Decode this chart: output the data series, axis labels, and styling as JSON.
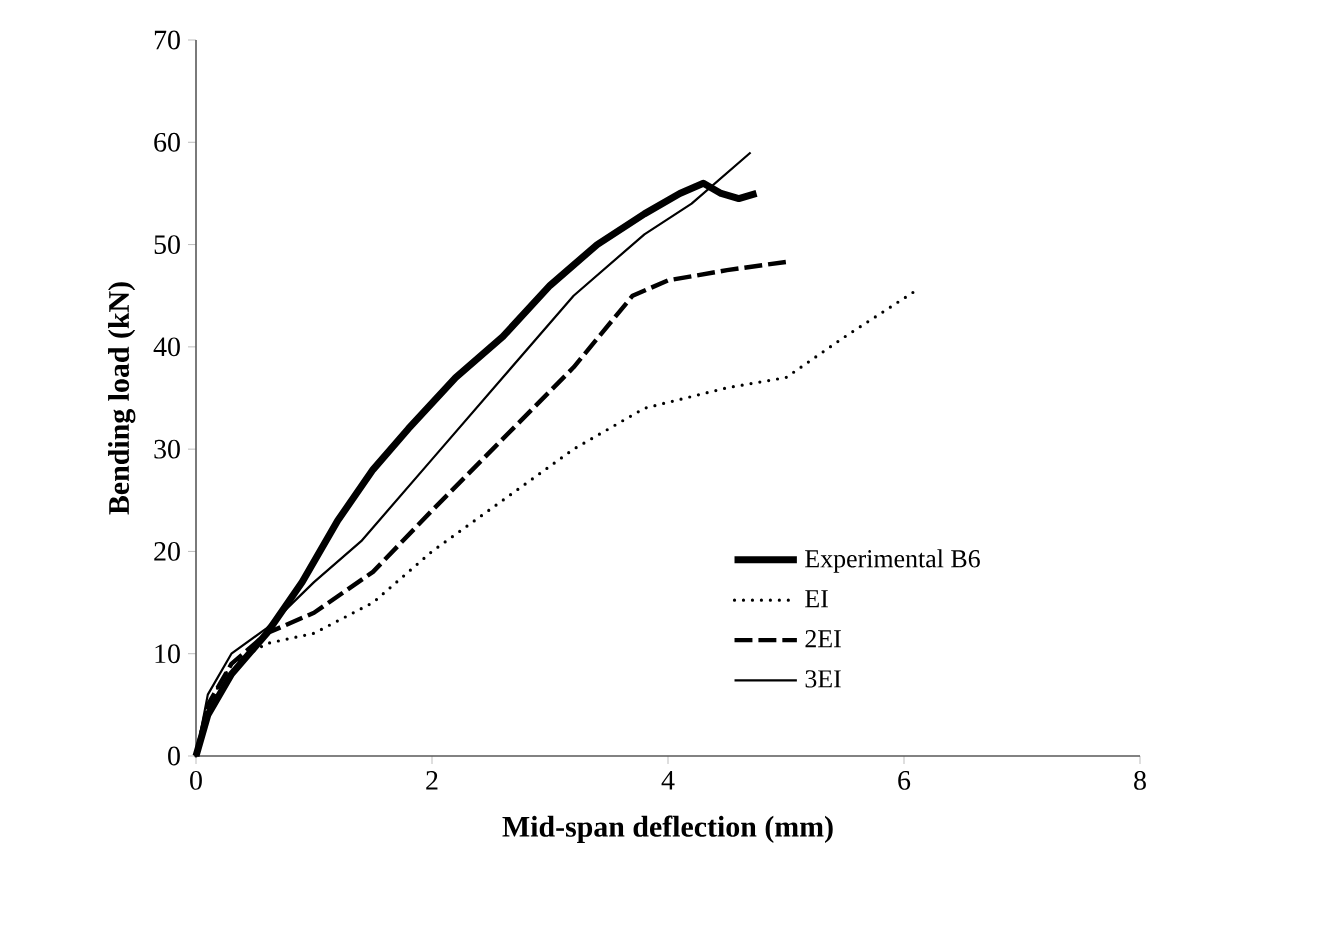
{
  "chart_data": {
    "type": "line",
    "xlabel": "Mid-span deflection (mm)",
    "ylabel": "Bending load (kN)",
    "xlim": [
      0,
      8
    ],
    "xticks": [
      0,
      2,
      4,
      6,
      8
    ],
    "ylim": [
      0,
      70
    ],
    "yticks": [
      0,
      10,
      20,
      30,
      40,
      50,
      60,
      70
    ],
    "grid": false,
    "legend": "right",
    "marker": "none",
    "series": [
      {
        "name": "Experimental B6",
        "color": "#000000",
        "line_style": "solid",
        "x": [
          0,
          0.1,
          0.3,
          0.6,
          0.9,
          1.2,
          1.5,
          1.8,
          2.2,
          2.6,
          3.0,
          3.4,
          3.8,
          4.1,
          4.3,
          4.45,
          4.6,
          4.75
        ],
        "values": [
          0,
          4,
          8,
          12,
          17,
          23,
          28,
          32,
          37,
          41,
          46,
          50,
          53,
          55,
          56,
          55,
          54.5,
          55
        ]
      },
      {
        "name": "EI",
        "color": "#000000",
        "line_style": "dotted",
        "x": [
          0,
          0.1,
          0.3,
          0.6,
          1.0,
          1.5,
          2.0,
          2.6,
          3.2,
          3.8,
          4.5,
          5.0,
          5.5,
          6.1
        ],
        "values": [
          0,
          5,
          9,
          11,
          12,
          15,
          20,
          25,
          30,
          34,
          36,
          37,
          41,
          45.5
        ]
      },
      {
        "name": "2EI",
        "color": "#000000",
        "line_style": "dashed",
        "x": [
          0,
          0.1,
          0.3,
          0.6,
          1.0,
          1.5,
          2.0,
          2.6,
          3.2,
          3.7,
          4.0,
          4.5,
          5.0
        ],
        "values": [
          0,
          5,
          9,
          12,
          14,
          18,
          24,
          31,
          38,
          45,
          46.5,
          47.5,
          48.3
        ]
      },
      {
        "name": "3EI",
        "color": "#000000",
        "line_style": "solid",
        "x": [
          0,
          0.1,
          0.3,
          0.6,
          1.0,
          1.4,
          2.0,
          2.6,
          3.2,
          3.8,
          4.2,
          4.7
        ],
        "values": [
          0,
          6,
          10,
          12.5,
          17,
          21,
          29,
          37,
          45,
          51,
          54,
          59
        ]
      }
    ]
  }
}
